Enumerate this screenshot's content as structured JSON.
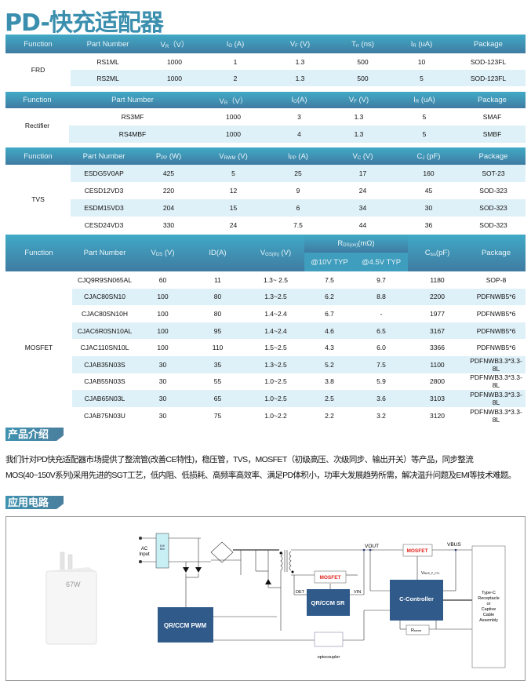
{
  "title": "PD-快充适配器",
  "tables": [
    {
      "id": "frd",
      "function": "FRD",
      "cols": [
        83,
        95,
        75,
        80,
        85,
        75,
        75,
        95
      ],
      "headers": [
        [
          "Function"
        ],
        [
          "Part Number"
        ],
        [
          "V",
          "R",
          "（V）"
        ],
        [
          "I",
          "O",
          " (A)"
        ],
        [
          "V",
          "F",
          " (V)"
        ],
        [
          "T",
          "rr",
          " (ns)"
        ],
        [
          "I",
          "R",
          " (uA)"
        ],
        [
          "Package"
        ]
      ],
      "rows": [
        [
          "RS1ML",
          "1000",
          "1",
          "1.3",
          "500",
          "10",
          "SOD-123FL"
        ],
        [
          "RS2ML",
          "1000",
          "2",
          "1.3",
          "500",
          "5",
          "SOD-123FL"
        ]
      ]
    },
    {
      "id": "rectifier",
      "function": "Rectifier",
      "cols": [
        81,
        162,
        95,
        73,
        79,
        88,
        85
      ],
      "headers": [
        [
          "Function"
        ],
        [
          "Part Number"
        ],
        [
          "V",
          "R",
          "（V）"
        ],
        [
          "I",
          "O",
          "(A)"
        ],
        [
          "V",
          "F",
          " (V)"
        ],
        [
          "I",
          "R",
          " (uA)"
        ],
        [
          "Package"
        ]
      ],
      "rows": [
        [
          "RS3MF",
          "1000",
          "3",
          "1.3",
          "5",
          "SMAF"
        ],
        [
          "RS4MBF",
          "1000",
          "4",
          "1.3",
          "5",
          "SMBF"
        ]
      ]
    },
    {
      "id": "tvs",
      "function": "TVS",
      "cols": [
        83,
        85,
        80,
        85,
        80,
        85,
        83,
        82
      ],
      "headers": [
        [
          "Function"
        ],
        [
          "Part  Number"
        ],
        [
          "P",
          "PP",
          "  (W)"
        ],
        [
          "V",
          "RWM",
          "  (V)"
        ],
        [
          "I",
          "PP",
          " (A)"
        ],
        [
          "V",
          "C",
          "  (V)"
        ],
        [
          "C",
          "J",
          "  (pF)"
        ],
        [
          "Package"
        ]
      ],
      "rows": [
        [
          "ESDG5V0AP",
          "425",
          "5",
          "25",
          "17",
          "160",
          "SOT-23"
        ],
        [
          "CESD12VD3",
          "220",
          "12",
          "9",
          "24",
          "45",
          "SOD-323"
        ],
        [
          "ESDM15VD3",
          "204",
          "15",
          "6",
          "34",
          "30",
          "SOD-323"
        ],
        [
          "CESD24VD3",
          "330",
          "24",
          "7.5",
          "44",
          "36",
          "SOD-323"
        ]
      ]
    },
    {
      "id": "mosfet",
      "function": "MOSFET",
      "cols": [
        85,
        83,
        65,
        75,
        73,
        64,
        68,
        75,
        75
      ],
      "headers": [
        [
          "Function"
        ],
        [
          "Part  Number"
        ],
        [
          "V",
          "DS",
          " (V)"
        ],
        [
          "ID(A)"
        ],
        [
          "V",
          "GS(th)",
          " (V)"
        ],
        [
          "R",
          "DS(on)",
          "(mΩ)"
        ],
        [
          "C",
          "iss",
          "(pF)"
        ],
        [
          "Package"
        ]
      ],
      "subheaders": [
        "@10V  TYP",
        "@4.5V TYP"
      ],
      "rows": [
        [
          "CJQ9R9SN065AL",
          "60",
          "11",
          "1.3~ 2.5",
          "7.5",
          "9.7",
          "1180",
          "SOP-8"
        ],
        [
          "CJAC80SN10",
          "100",
          "80",
          "1.3~2.5",
          "6.2",
          "8.8",
          "2200",
          "PDFNWB5*6"
        ],
        [
          "CJAC80SN10H",
          "100",
          "80",
          "1.4~2.4",
          "6.7",
          "-",
          "1977",
          "PDFNWB5*6"
        ],
        [
          "CJAC6R0SN10AL",
          "100",
          "95",
          "1.4~2.4",
          "4.6",
          "6.5",
          "3167",
          "PDFNWB5*6"
        ],
        [
          "CJAC110SN10L",
          "100",
          "110",
          "1.5~2.5",
          "4.3",
          "6.0",
          "3366",
          "PDFNWB5*6"
        ],
        [
          "CJAB35N03S",
          "30",
          "35",
          "1.3~2.5",
          "5.2",
          "7.5",
          "1100",
          "PDFNWB3.3*3.3-8L"
        ],
        [
          "CJAB55N03S",
          "30",
          "55",
          "1.0~2.5",
          "3.8",
          "5.9",
          "2800",
          "PDFNWB3.3*3.3-8L"
        ],
        [
          "CJAB65N03L",
          "30",
          "65",
          "1.0~2.5",
          "2.5",
          "3.6",
          "3103",
          "PDFNWB3.3*3.3-8L"
        ],
        [
          "CJAB75N03U",
          "30",
          "75",
          "1.0~2.2",
          "2.2",
          "3.2",
          "3120",
          "PDFNWB3.3*3.3-8L"
        ]
      ]
    }
  ],
  "intro": {
    "heading": "产品介绍",
    "line1": "我们针对PD快充适配器市场提供了整流管(改善CE特性)，稳压管，TVS，MOSFET（初级高压、次级同步、输出开关）等产品，同步整流",
    "line2": "MOS(40~150V系列)采用先进的SGT工艺，低内阻、低损耗、高频率高效率、满足PD体积小，功率大发展趋势所需，解决温升问题及EMI等技术难题。"
  },
  "circuit": {
    "heading": "应用电路",
    "charger_label": "67W",
    "ac_input": [
      "AC",
      "Input"
    ],
    "emi": [
      "EMI",
      "filter"
    ],
    "pwm": "QR/CCM PWM",
    "sr": "QR/CCM SR",
    "sr_mosfet": "MOSFET",
    "out_mosfet": "MOSFET",
    "controller": "C-Controller",
    "vout": "VOUT",
    "vbus": "VBUS",
    "vbus_ctl": [
      "V",
      "BUS_P_CTL"
    ],
    "det": "DET",
    "vin": "VIN",
    "rsense": [
      "R",
      "sence"
    ],
    "optocoupler": "optocoupler",
    "typec": [
      "Type-C",
      "Receptacle",
      "or",
      "Captive",
      "Cable",
      "Assembly"
    ]
  },
  "colors": {
    "title": "#3b8fae",
    "header_top": "#41aac6",
    "header_bottom": "#3f7ba2",
    "stripe": "#dff1f8",
    "block": "#2f5a8a",
    "mosfet_text": "#e0201a"
  }
}
